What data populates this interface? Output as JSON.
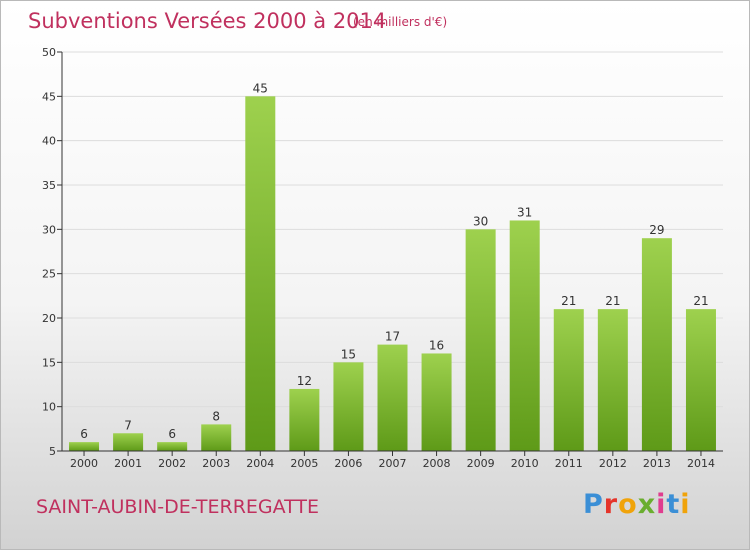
{
  "header": {
    "title": "Subventions Versées 2000 à 2014",
    "subtitle": "(en milliers d'€)"
  },
  "footer": {
    "commune": "SAINT-AUBIN-DE-TERREGATTE",
    "brand": "Proxiti",
    "brand_colors": [
      "#3b8fd6",
      "#e5342a",
      "#f0a30a",
      "#6aae2f",
      "#e03c8f",
      "#3b8fd6",
      "#f0a30a"
    ]
  },
  "colors": {
    "bar_top": "#9ed14e",
    "bar_bottom": "#5e9a18",
    "grid": "#dddddd",
    "axis": "#333333",
    "accent": "#c0305e"
  },
  "chart_data": {
    "type": "bar",
    "categories": [
      "2000",
      "2001",
      "2002",
      "2003",
      "2004",
      "2005",
      "2006",
      "2007",
      "2008",
      "2009",
      "2010",
      "2011",
      "2012",
      "2013",
      "2014"
    ],
    "values": [
      6,
      7,
      6,
      8,
      45,
      12,
      15,
      17,
      16,
      30,
      31,
      21,
      21,
      29,
      21
    ],
    "title": "Subventions Versées 2000 à 2014",
    "subtitle": "(en milliers d'€)",
    "ylim": [
      5,
      50
    ],
    "yticks": [
      5,
      10,
      15,
      20,
      25,
      30,
      35,
      40,
      45,
      50
    ],
    "grid": true,
    "data_labels": true
  }
}
